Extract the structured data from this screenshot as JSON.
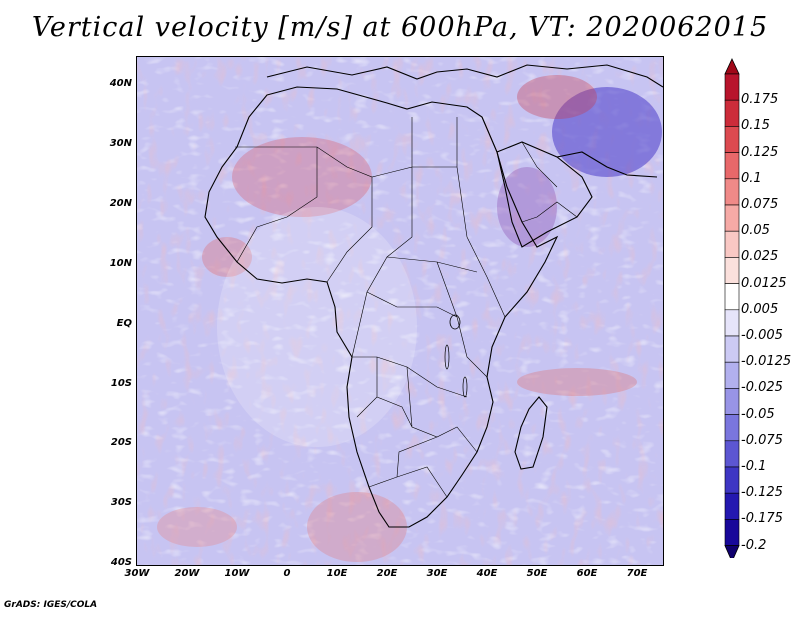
{
  "title": "Vertical velocity [m/s] at 600hPa, VT: 2020062015",
  "lat_labels": [
    "40N",
    "30N",
    "20N",
    "10N",
    "EQ",
    "10S",
    "20S",
    "30S",
    "40S"
  ],
  "lon_labels": [
    "30W",
    "20W",
    "10W",
    "0",
    "10E",
    "20E",
    "30E",
    "40E",
    "50E",
    "60E",
    "70E"
  ],
  "colorbar": {
    "levels": [
      "0.175",
      "0.15",
      "0.125",
      "0.1",
      "0.075",
      "0.05",
      "0.025",
      "0.0125",
      "0.005",
      "-0.005",
      "-0.0125",
      "-0.025",
      "-0.05",
      "-0.075",
      "-0.1",
      "-0.125",
      "-0.175",
      "-0.2"
    ],
    "colors": [
      "#b8142c",
      "#cc2c3a",
      "#dc4a50",
      "#e8686a",
      "#f08a88",
      "#f6aaa6",
      "#f9c8c4",
      "#fbe0dc",
      "#ffffff",
      "#e6e4fa",
      "#cccaf4",
      "#b2b0ee",
      "#9894e6",
      "#7a76de",
      "#5c56d2",
      "#3e36c4",
      "#2418b0",
      "#18089a"
    ],
    "top_arrow_color": "#a00818",
    "bottom_arrow_color": "#10006e"
  },
  "footer": "GrADS: IGES/COLA"
}
